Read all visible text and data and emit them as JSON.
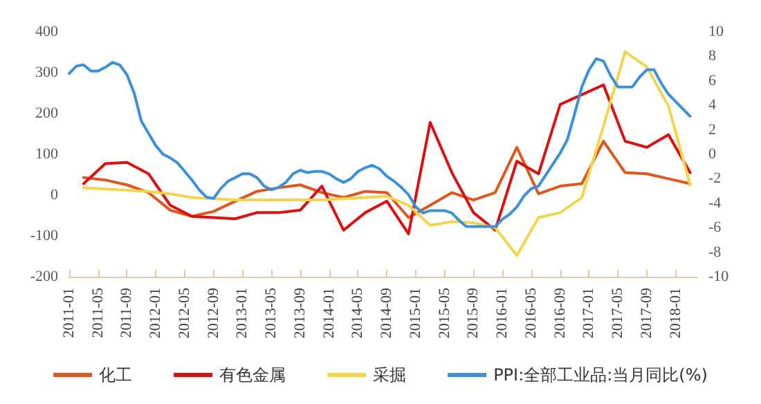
{
  "chart_data": {
    "type": "line",
    "legend": "bottom",
    "grid": false,
    "marker": "none",
    "line_style": "solid",
    "xlim": [
      "2011-01",
      "2018-04"
    ],
    "xticks": [
      "2011-01",
      "2011-05",
      "2011-09",
      "2012-01",
      "2012-05",
      "2012-09",
      "2013-01",
      "2013-05",
      "2013-09",
      "2014-01",
      "2014-05",
      "2014-09",
      "2015-01",
      "2015-05",
      "2015-09",
      "2016-01",
      "2016-05",
      "2016-09",
      "2017-01",
      "2017-05",
      "2017-09",
      "2018-01"
    ],
    "ylim": [
      -200,
      400
    ],
    "yticks": [
      -200,
      -100,
      0,
      100,
      200,
      300,
      400
    ],
    "y2lim": [
      -10,
      10
    ],
    "y2ticks": [
      -10,
      -8,
      -6,
      -4,
      -2,
      0,
      2,
      4,
      6,
      8,
      10
    ],
    "series": [
      {
        "name": "化工",
        "color": "#e0561c",
        "x": [
          "2011-03",
          "2011-06",
          "2011-09",
          "2011-12",
          "2012-03",
          "2012-06",
          "2012-09",
          "2012-12",
          "2013-03",
          "2013-06",
          "2013-09",
          "2013-12",
          "2014-03",
          "2014-06",
          "2014-09",
          "2014-12",
          "2015-03",
          "2015-06",
          "2015-09",
          "2015-12",
          "2016-03",
          "2016-06",
          "2016-09",
          "2016-12",
          "2017-03",
          "2017-06",
          "2017-09",
          "2017-12",
          "2018-03"
        ],
        "values": [
          43,
          37,
          25,
          6,
          -37,
          -52,
          -40,
          -15,
          9,
          18,
          25,
          6,
          -6,
          9,
          6,
          -55,
          -25,
          6,
          -12,
          6,
          117,
          3,
          22,
          28,
          132,
          55,
          52,
          40,
          28
        ]
      },
      {
        "name": "有色金属",
        "color": "#e00f0f",
        "x": [
          "2011-03",
          "2011-06",
          "2011-09",
          "2011-12",
          "2012-03",
          "2012-06",
          "2012-09",
          "2012-12",
          "2013-03",
          "2013-06",
          "2013-09",
          "2013-12",
          "2014-03",
          "2014-06",
          "2014-09",
          "2014-12",
          "2015-03",
          "2015-06",
          "2015-09",
          "2015-12",
          "2016-03",
          "2016-06",
          "2016-09",
          "2016-12",
          "2017-03",
          "2017-06",
          "2017-09",
          "2017-12",
          "2018-03"
        ],
        "values": [
          28,
          77,
          80,
          52,
          -25,
          -52,
          -55,
          -58,
          -43,
          -43,
          -37,
          22,
          -86,
          -43,
          -15,
          -95,
          178,
          55,
          -43,
          -86,
          83,
          52,
          222,
          246,
          270,
          132,
          117,
          148,
          55
        ]
      },
      {
        "name": "采掘",
        "color": "#f2d54a",
        "x": [
          "2011-03",
          "2011-06",
          "2011-09",
          "2011-12",
          "2012-03",
          "2012-06",
          "2012-09",
          "2012-12",
          "2013-03",
          "2013-06",
          "2013-09",
          "2013-12",
          "2014-03",
          "2014-06",
          "2014-09",
          "2014-12",
          "2015-03",
          "2015-06",
          "2015-09",
          "2015-12",
          "2016-03",
          "2016-06",
          "2016-09",
          "2016-12",
          "2017-03",
          "2017-06",
          "2017-09",
          "2017-12",
          "2018-03"
        ],
        "values": [
          18,
          15,
          12,
          9,
          3,
          -6,
          -9,
          -12,
          -12,
          -12,
          -12,
          -12,
          -9,
          -6,
          -3,
          -25,
          -74,
          -65,
          -68,
          -80,
          -148,
          -55,
          -43,
          -6,
          169,
          351,
          314,
          218,
          25
        ]
      },
      {
        "name": "PPI:全部工业品:当月同比(%)",
        "color": "#3b91d9",
        "axis": "y2",
        "x": [
          "2011-01",
          "2011-02",
          "2011-03",
          "2011-04",
          "2011-05",
          "2011-06",
          "2011-07",
          "2011-08",
          "2011-09",
          "2011-10",
          "2011-11",
          "2011-12",
          "2012-01",
          "2012-02",
          "2012-03",
          "2012-04",
          "2012-05",
          "2012-06",
          "2012-07",
          "2012-08",
          "2012-09",
          "2012-10",
          "2012-11",
          "2012-12",
          "2013-01",
          "2013-02",
          "2013-03",
          "2013-04",
          "2013-05",
          "2013-06",
          "2013-07",
          "2013-08",
          "2013-09",
          "2013-10",
          "2013-11",
          "2013-12",
          "2014-01",
          "2014-02",
          "2014-03",
          "2014-04",
          "2014-05",
          "2014-06",
          "2014-07",
          "2014-08",
          "2014-09",
          "2014-10",
          "2014-11",
          "2014-12",
          "2015-01",
          "2015-02",
          "2015-03",
          "2015-04",
          "2015-05",
          "2015-06",
          "2015-07",
          "2015-08",
          "2015-09",
          "2015-10",
          "2015-11",
          "2015-12",
          "2016-01",
          "2016-02",
          "2016-03",
          "2016-04",
          "2016-05",
          "2016-06",
          "2016-07",
          "2016-08",
          "2016-09",
          "2016-10",
          "2016-11",
          "2016-12",
          "2017-01",
          "2017-02",
          "2017-03",
          "2017-04",
          "2017-05",
          "2017-06",
          "2017-07",
          "2017-08",
          "2017-09",
          "2017-10",
          "2017-11",
          "2017-12",
          "2018-01",
          "2018-02",
          "2018-03"
        ],
        "values": [
          6.6,
          7.2,
          7.3,
          6.8,
          6.8,
          7.1,
          7.5,
          7.3,
          6.5,
          5.0,
          2.7,
          1.7,
          0.7,
          0.0,
          -0.3,
          -0.7,
          -1.4,
          -2.1,
          -2.9,
          -3.5,
          -3.6,
          -2.8,
          -2.2,
          -1.9,
          -1.6,
          -1.6,
          -1.9,
          -2.6,
          -2.9,
          -2.7,
          -2.3,
          -1.6,
          -1.3,
          -1.5,
          -1.4,
          -1.4,
          -1.6,
          -2.0,
          -2.3,
          -2.0,
          -1.4,
          -1.1,
          -0.9,
          -1.2,
          -1.8,
          -2.2,
          -2.7,
          -3.3,
          -4.3,
          -4.8,
          -4.6,
          -4.6,
          -4.6,
          -4.8,
          -5.4,
          -5.9,
          -5.9,
          -5.9,
          -5.9,
          -5.9,
          -5.3,
          -4.9,
          -4.3,
          -3.4,
          -2.8,
          -2.6,
          -1.7,
          -0.8,
          0.1,
          1.2,
          3.3,
          5.5,
          6.9,
          7.8,
          7.6,
          6.4,
          5.5,
          5.5,
          5.5,
          6.3,
          6.9,
          6.9,
          5.8,
          4.9,
          4.3,
          3.7,
          3.1
        ]
      }
    ]
  }
}
